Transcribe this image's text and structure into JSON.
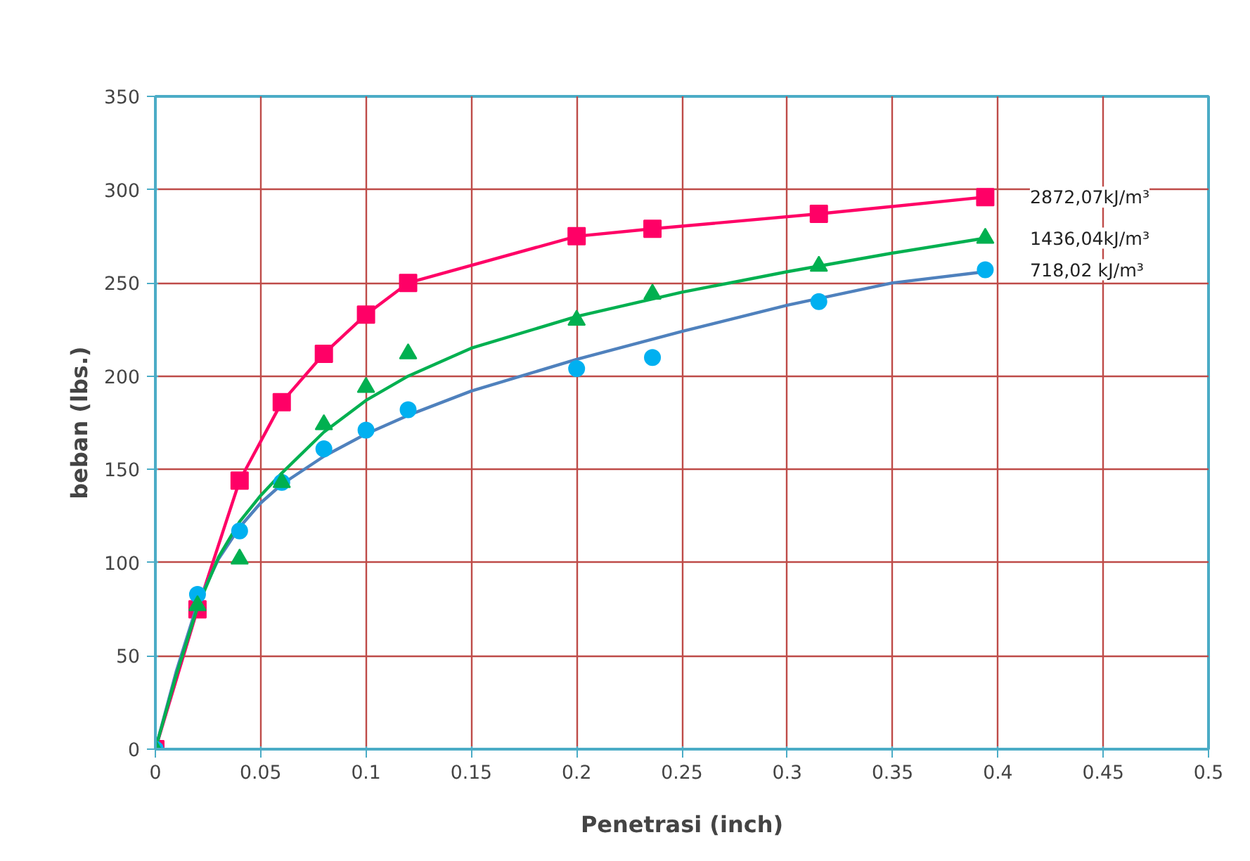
{
  "chart_data": {
    "type": "scatter",
    "xlabel": "Penetrasi (inch)",
    "ylabel": "beban (lbs.)",
    "xlim": [
      0,
      0.5
    ],
    "ylim": [
      0,
      350
    ],
    "xticks": [
      0,
      0.05,
      0.1,
      0.15,
      0.2,
      0.25,
      0.3,
      0.35,
      0.4,
      0.45,
      0.5
    ],
    "yticks": [
      0,
      50,
      100,
      150,
      200,
      250,
      300,
      350
    ],
    "grid": true,
    "series": [
      {
        "name": "2872,07kJ/m³",
        "type": "line",
        "marker": "square",
        "color": "#ff0066",
        "x": [
          0,
          0.02,
          0.04,
          0.06,
          0.08,
          0.1,
          0.12,
          0.2,
          0.236,
          0.315,
          0.394
        ],
        "values": [
          0,
          75,
          144,
          186,
          212,
          233,
          250,
          275,
          279,
          287,
          296
        ]
      },
      {
        "name": "718,02 kJ/m³",
        "marker": "circle",
        "color": "#00b0f0",
        "x": [
          0,
          0.02,
          0.04,
          0.06,
          0.08,
          0.1,
          0.12,
          0.2,
          0.236,
          0.315,
          0.394
        ],
        "values": [
          0,
          83,
          117,
          143,
          161,
          171,
          182,
          204,
          210,
          240,
          257
        ]
      },
      {
        "type": "line",
        "marker": "none",
        "color": "#4f81bd",
        "x": [
          0,
          0.01,
          0.02,
          0.03,
          0.04,
          0.05,
          0.06,
          0.08,
          0.1,
          0.12,
          0.15,
          0.2,
          0.25,
          0.3,
          0.35,
          0.394
        ],
        "values": [
          0,
          42,
          78,
          102,
          119,
          132,
          142,
          157,
          169,
          179,
          192,
          209,
          224,
          238,
          250,
          256
        ]
      },
      {
        "name": "1436,04kJ/m³",
        "marker": "triangle",
        "color": "#00b050",
        "x": [
          0,
          0.02,
          0.04,
          0.06,
          0.08,
          0.1,
          0.12,
          0.2,
          0.236,
          0.315,
          0.394
        ],
        "values": [
          0,
          77,
          102,
          143,
          174,
          194,
          212,
          230,
          244,
          259,
          274
        ]
      },
      {
        "type": "line",
        "marker": "none",
        "color": "#00b050",
        "x": [
          0,
          0.01,
          0.02,
          0.03,
          0.04,
          0.05,
          0.06,
          0.08,
          0.1,
          0.12,
          0.15,
          0.2,
          0.25,
          0.3,
          0.35,
          0.394
        ],
        "values": [
          0,
          40,
          76,
          103,
          122,
          136,
          148,
          170,
          187,
          200,
          215,
          232,
          245,
          256,
          266,
          274
        ]
      }
    ]
  }
}
